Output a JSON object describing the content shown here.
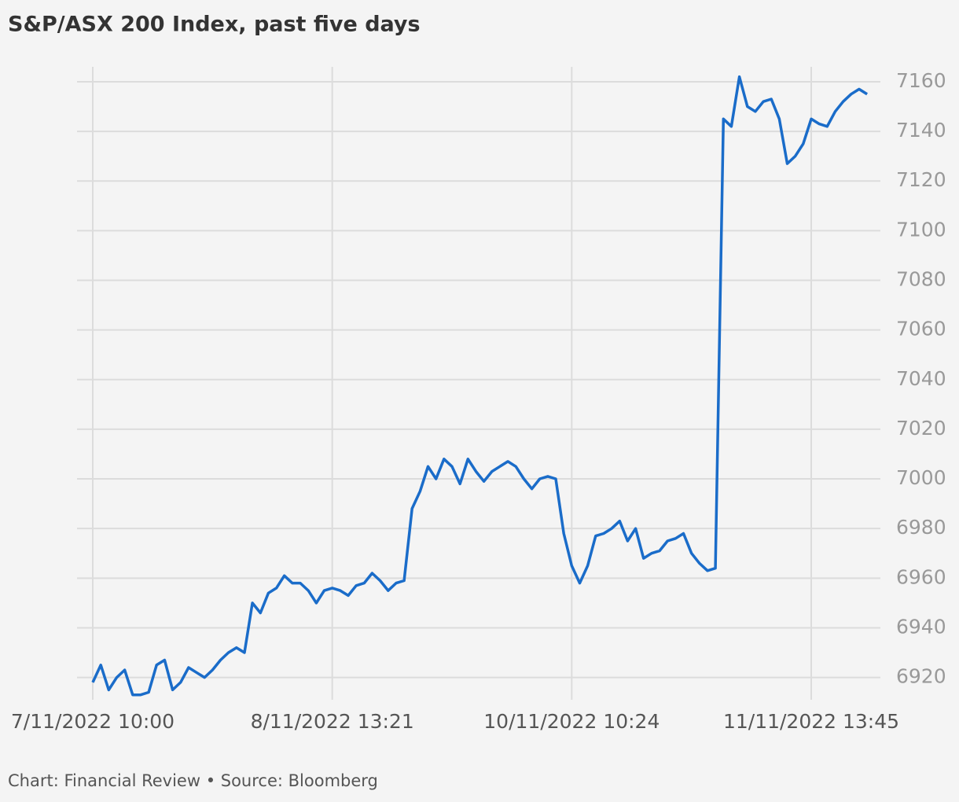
{
  "chart_data": {
    "type": "line",
    "title": "S&P/ASX 200 Index, past five days",
    "source": "Chart: Financial Review • Source: Bloomberg",
    "categories": [
      "7/11/2022 10:00",
      null,
      null,
      null,
      null,
      null,
      null,
      null,
      null,
      null,
      null,
      null,
      null,
      null,
      null,
      null,
      null,
      null,
      null,
      null,
      null,
      null,
      null,
      null,
      null,
      null,
      null,
      null,
      null,
      null,
      "8/11/2022 13:21",
      null,
      null,
      null,
      null,
      null,
      null,
      null,
      null,
      null,
      null,
      null,
      null,
      null,
      null,
      null,
      null,
      null,
      null,
      null,
      null,
      null,
      null,
      null,
      null,
      null,
      null,
      null,
      null,
      null,
      "10/11/2022 10:24",
      null,
      null,
      null,
      null,
      null,
      null,
      null,
      null,
      null,
      null,
      null,
      null,
      null,
      null,
      null,
      null,
      null,
      null,
      null,
      null,
      null,
      null,
      null,
      null,
      null,
      null,
      null,
      null,
      null,
      "11/11/2022 13:45",
      null,
      null,
      null,
      null,
      null,
      null,
      null
    ],
    "values": [
      6918,
      6925,
      6915,
      6920,
      6923,
      6913,
      6913,
      6914,
      6925,
      6927,
      6915,
      6918,
      6924,
      6922,
      6920,
      6923,
      6927,
      6930,
      6932,
      6930,
      6950,
      6946,
      6954,
      6956,
      6961,
      6958,
      6958,
      6955,
      6950,
      6955,
      6956,
      6955,
      6953,
      6957,
      6958,
      6962,
      6959,
      6955,
      6958,
      6959,
      6988,
      6995,
      7005,
      7000,
      7008,
      7005,
      6998,
      7008,
      7003,
      6999,
      7003,
      7005,
      7007,
      7005,
      7000,
      6996,
      7000,
      7001,
      7000,
      6978,
      6965,
      6958,
      6965,
      6977,
      6978,
      6980,
      6983,
      6975,
      6980,
      6968,
      6970,
      6971,
      6975,
      6976,
      6978,
      6970,
      6966,
      6963,
      6964,
      7145,
      7142,
      7162,
      7150,
      7148,
      7152,
      7153,
      7145,
      7127,
      7130,
      7135,
      7145,
      7143,
      7142,
      7148,
      7152,
      7155,
      7157,
      7155
    ],
    "color": "#1a6cc9",
    "ylim": [
      6911,
      7166
    ],
    "yticks": [
      6920,
      6940,
      6960,
      6980,
      7000,
      7020,
      7040,
      7060,
      7080,
      7100,
      7120,
      7140,
      7160
    ],
    "grid": true
  }
}
